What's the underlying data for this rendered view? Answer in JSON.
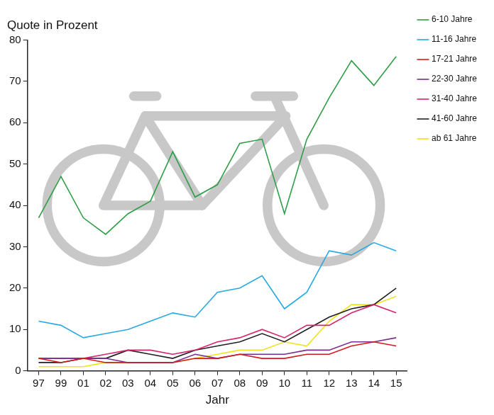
{
  "chart_data": {
    "type": "line",
    "ylabel": "Quote in Prozent",
    "xlabel": "Jahr",
    "categories": [
      "97",
      "99",
      "01",
      "02",
      "03",
      "04",
      "05",
      "06",
      "07",
      "08",
      "09",
      "10",
      "11",
      "12",
      "13",
      "14",
      "15"
    ],
    "series": [
      {
        "name": "6-10 Jahre",
        "color": "#2e9e46",
        "values": [
          37,
          47,
          37,
          33,
          38,
          41,
          53,
          42,
          45,
          55,
          56,
          38,
          56,
          66,
          75,
          69,
          76
        ]
      },
      {
        "name": "11-16 Jahre",
        "color": "#27a9e1",
        "values": [
          12,
          11,
          8,
          9,
          10,
          12,
          14,
          13,
          19,
          20,
          23,
          15,
          19,
          29,
          28,
          31,
          29
        ]
      },
      {
        "name": "17-21 Jahre",
        "color": "#d7191c",
        "values": [
          3,
          2,
          3,
          2,
          2,
          2,
          2,
          3,
          3,
          4,
          3,
          3,
          4,
          4,
          6,
          7,
          6
        ]
      },
      {
        "name": "22-30 Jahre",
        "color": "#7b2d8e",
        "values": [
          3,
          3,
          3,
          3,
          2,
          2,
          2,
          4,
          3,
          4,
          4,
          4,
          5,
          5,
          7,
          7,
          8
        ]
      },
      {
        "name": "31-40 Jahre",
        "color": "#d6246e",
        "values": [
          3,
          3,
          3,
          4,
          5,
          5,
          4,
          5,
          7,
          8,
          10,
          8,
          11,
          11,
          14,
          16,
          14
        ]
      },
      {
        "name": "41-60 Jahre",
        "color": "#231f20",
        "values": [
          2,
          2,
          3,
          3,
          5,
          4,
          3,
          5,
          6,
          7,
          9,
          7,
          10,
          13,
          15,
          16,
          20
        ]
      },
      {
        "name": "ab 61 Jahre",
        "color": "#f2e21c",
        "values": [
          1,
          1,
          1,
          2,
          2,
          2,
          2,
          3,
          4,
          5,
          5,
          7,
          6,
          12,
          16,
          16,
          18
        ]
      }
    ],
    "ylim": [
      0,
      80
    ],
    "yticks": [
      0,
      10,
      20,
      30,
      40,
      50,
      60,
      70,
      80
    ],
    "grid": false,
    "legend": "upper right"
  }
}
